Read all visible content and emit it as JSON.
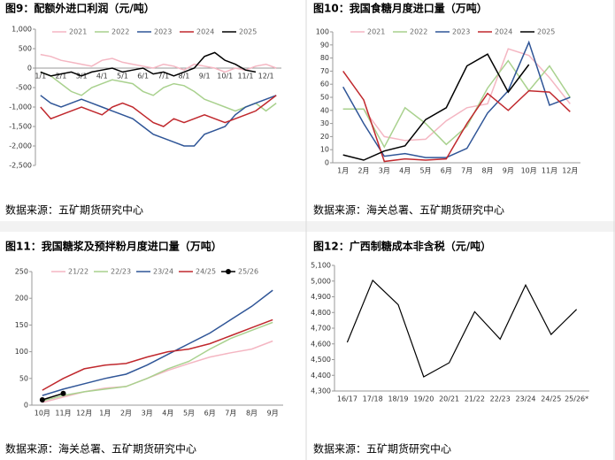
{
  "chart_data": [
    {
      "type": "line",
      "title": "图9：配额外进口利润（元/吨）",
      "source": "数据来源：五矿期货研究中心",
      "categories": [
        "1/1",
        null,
        "2/1",
        null,
        "3/1",
        null,
        "4/1",
        null,
        "5/1",
        null,
        "6/1",
        null,
        "7/1",
        null,
        "8/1",
        null,
        "9/1",
        null,
        "10/1",
        null,
        "11/1",
        null,
        "12/1",
        null
      ],
      "ylim": [
        -2500,
        1000
      ],
      "yticks": [
        {
          "value": 1000,
          "label": "1,000"
        },
        500,
        0,
        -500,
        {
          "value": -1000,
          "label": "-1,000"
        },
        {
          "value": -1500,
          "label": "-1,500"
        },
        {
          "value": -2000,
          "label": "-2,000"
        },
        {
          "value": -2500,
          "label": "-2,500"
        }
      ],
      "series": [
        {
          "name": "2021",
          "color": "#f4b6c2",
          "values": [
            350,
            300,
            200,
            150,
            100,
            50,
            200,
            250,
            150,
            100,
            50,
            0,
            100,
            50,
            -50,
            100,
            50,
            0,
            -100,
            0,
            -50,
            50,
            100,
            0
          ]
        },
        {
          "name": "2022",
          "color": "#a9d18e",
          "values": [
            -100,
            -200,
            -400,
            -600,
            -700,
            -500,
            -400,
            -300,
            -350,
            -400,
            -600,
            -700,
            -500,
            -400,
            -450,
            -600,
            -800,
            -900,
            -1000,
            -1100,
            -1000,
            -900,
            -1100,
            -900
          ]
        },
        {
          "name": "2023",
          "color": "#2f5597",
          "values": [
            -700,
            -900,
            -1000,
            -900,
            -800,
            -900,
            -1000,
            -1100,
            -1200,
            -1300,
            -1500,
            -1700,
            -1800,
            -1900,
            -2000,
            -2000,
            -1700,
            -1600,
            -1500,
            -1200,
            -1000,
            -900,
            -800,
            -700
          ]
        },
        {
          "name": "2024",
          "color": "#c0282d",
          "values": [
            -1000,
            -1300,
            -1200,
            -1100,
            -1000,
            -1100,
            -1200,
            -1000,
            -900,
            -1000,
            -1200,
            -1400,
            -1500,
            -1300,
            -1400,
            -1300,
            -1200,
            -1300,
            -1400,
            -1300,
            -1200,
            -1100,
            -900,
            -700
          ]
        },
        {
          "name": "2025",
          "color": "#000000",
          "values": [
            -100,
            -200,
            -150,
            -100,
            -200,
            -100,
            -50,
            0,
            -100,
            -50,
            0,
            -150,
            -100,
            -200,
            -100,
            0,
            300,
            400,
            200,
            100,
            -50,
            -100,
            null,
            null
          ]
        }
      ]
    },
    {
      "type": "line",
      "title": "图10：我国食糖月度进口量（万吨）",
      "source": "数据来源：海关总署、五矿期货研究中心",
      "categories": [
        "1月",
        "2月",
        "3月",
        "4月",
        "5月",
        "6月",
        "7月",
        "8月",
        "9月",
        "10月",
        "11月",
        "12月"
      ],
      "ylim": [
        0,
        100
      ],
      "yticks": [
        0,
        10,
        20,
        30,
        40,
        50,
        60,
        70,
        80,
        90,
        100
      ],
      "series": [
        {
          "name": "2021",
          "color": "#f4b6c2",
          "values": [
            41,
            41,
            20,
            17,
            18,
            32,
            42,
            45,
            87,
            82,
            65,
            45
          ]
        },
        {
          "name": "2022",
          "color": "#a9d18e",
          "values": [
            41,
            41,
            12,
            42,
            30,
            14,
            28,
            57,
            78,
            55,
            74,
            50
          ]
        },
        {
          "name": "2023",
          "color": "#2f5597",
          "values": [
            58,
            30,
            5,
            7,
            4,
            4,
            11,
            38,
            55,
            92,
            44,
            50
          ]
        },
        {
          "name": "2024",
          "color": "#c0282d",
          "values": [
            70,
            48,
            1,
            3,
            2,
            3,
            30,
            53,
            40,
            55,
            54,
            39
          ]
        },
        {
          "name": "2025",
          "color": "#000000",
          "values": [
            6,
            2,
            9,
            13,
            33,
            42,
            74,
            83,
            54,
            75,
            null,
            null
          ]
        }
      ]
    },
    {
      "type": "line",
      "title": "图11：我国糖浆及预拌粉月度进口量（万吨）",
      "source": "数据来源：海关总署、五矿期货研究中心",
      "categories": [
        "10月",
        "11月",
        "12月",
        "1月",
        "2月",
        "3月",
        "4月",
        "5月",
        "6月",
        "7月",
        "8月",
        "9月"
      ],
      "ylim": [
        0,
        250
      ],
      "yticks": [
        0,
        50,
        100,
        150,
        200,
        250
      ],
      "series": [
        {
          "name": "21/22",
          "color": "#f4b6c2",
          "values": [
            5,
            15,
            25,
            32,
            35,
            50,
            65,
            78,
            90,
            98,
            105,
            120
          ]
        },
        {
          "name": "22/23",
          "color": "#a9d18e",
          "values": [
            8,
            18,
            25,
            30,
            35,
            50,
            68,
            82,
            105,
            125,
            140,
            155
          ]
        },
        {
          "name": "23/24",
          "color": "#2f5597",
          "values": [
            18,
            30,
            40,
            50,
            58,
            75,
            95,
            115,
            135,
            160,
            185,
            215
          ]
        },
        {
          "name": "24/25",
          "color": "#c0282d",
          "values": [
            28,
            50,
            68,
            75,
            78,
            90,
            100,
            105,
            115,
            130,
            145,
            160
          ]
        },
        {
          "name": "25/26",
          "color": "#000000",
          "markers": true,
          "values": [
            10,
            22,
            null,
            null,
            null,
            null,
            null,
            null,
            null,
            null,
            null,
            null
          ]
        }
      ]
    },
    {
      "type": "line",
      "title": "图12：广西制糖成本非含税（元/吨）",
      "source": "数据来源：五矿期货研究中心",
      "categories": [
        "16/17",
        "17/18",
        "18/19",
        "19/20",
        "20/21",
        "21/22",
        "22/23",
        "23/24",
        "24/25",
        "25/26*"
      ],
      "ylim": [
        4300,
        5100
      ],
      "yticks": [
        {
          "value": 4300,
          "label": "4,300"
        },
        {
          "value": 4400,
          "label": "4,400"
        },
        {
          "value": 4500,
          "label": "4,500"
        },
        {
          "value": 4600,
          "label": "4,600"
        },
        {
          "value": 4700,
          "label": "4,700"
        },
        {
          "value": 4800,
          "label": "4,800"
        },
        {
          "value": 4900,
          "label": "4,900"
        },
        {
          "value": 5000,
          "label": "5,000"
        },
        {
          "value": 5100,
          "label": "5,100"
        }
      ],
      "color": "#000000",
      "values": [
        4610,
        5005,
        4850,
        4390,
        4480,
        4805,
        4630,
        4975,
        4660,
        4820
      ]
    }
  ]
}
